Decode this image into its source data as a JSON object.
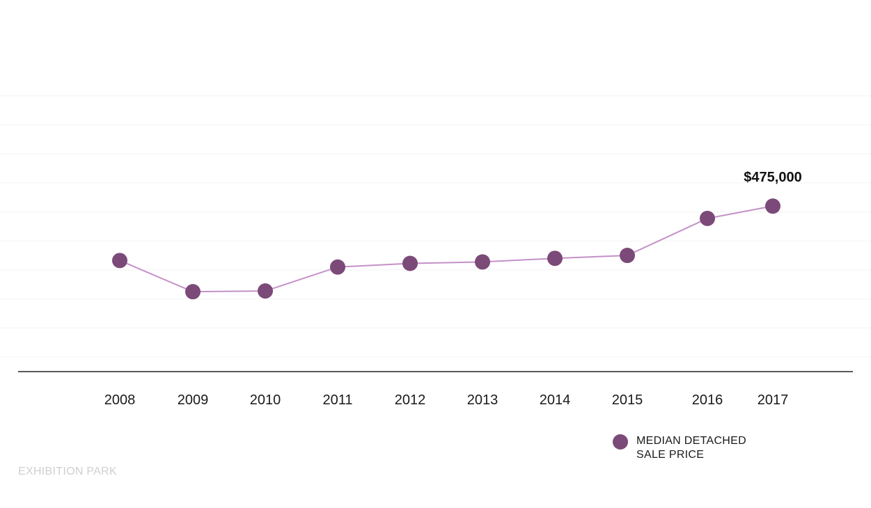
{
  "colors": {
    "line": "#c490c8",
    "marker": "#7b4a78",
    "gridline": "#f3f3f3",
    "axis": "#222222",
    "footer_text": "#cfcfcf"
  },
  "chart_data": {
    "type": "line",
    "title": "",
    "xlabel": "",
    "ylabel": "",
    "categories": [
      "2008",
      "2009",
      "2010",
      "2011",
      "2012",
      "2013",
      "2014",
      "2015",
      "2016",
      "2017"
    ],
    "series": [
      {
        "name": "MEDIAN DETACHED SALE PRICE",
        "values": [
          400000,
          357000,
          358000,
          391000,
          396000,
          398000,
          403000,
          407000,
          458000,
          475000
        ]
      }
    ],
    "ylim": [
      267000,
      667000
    ],
    "grid": true,
    "legend_position": "bottom-right",
    "annotations": [
      {
        "category": "2017",
        "text": "$475,000"
      }
    ]
  },
  "legend": {
    "line1": "MEDIAN DETACHED",
    "line2": "SALE PRICE"
  },
  "footer": {
    "label": "EXHIBITION PARK"
  }
}
